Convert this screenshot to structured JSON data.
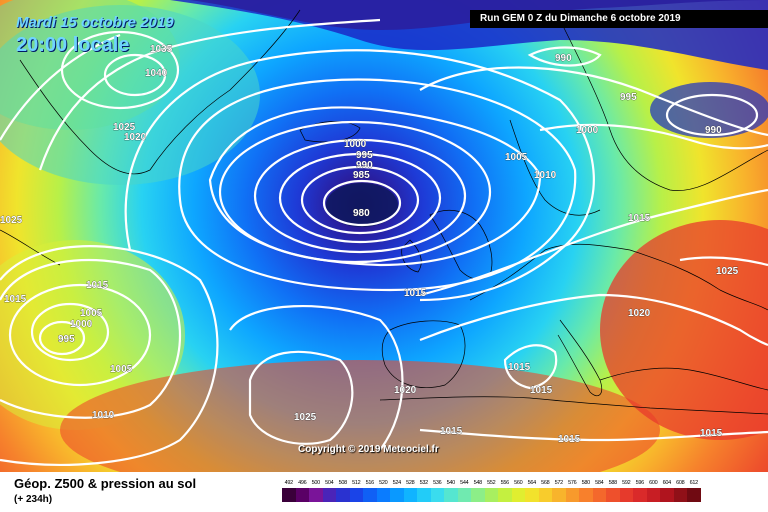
{
  "header": {
    "date_label": "Mardi 15 octobre 2019",
    "time_label": "20:00 locale",
    "run_info": "Run GEM 0 Z du Dimanche 6 octobre 2019"
  },
  "footer": {
    "product_title": "Géop. Z500 & pression au sol",
    "forecast_hour": "(+ 234h)",
    "copyright": "Copyright © 2019 Meteociel.fr"
  },
  "colorbar": {
    "levels": [
      "492",
      "496",
      "500",
      "504",
      "508",
      "512",
      "516",
      "520",
      "524",
      "528",
      "532",
      "536",
      "540",
      "544",
      "548",
      "552",
      "556",
      "560",
      "564",
      "568",
      "572",
      "576",
      "580",
      "584",
      "588",
      "592",
      "596",
      "600",
      "604",
      "608",
      "612"
    ],
    "colors": [
      "#3a003a",
      "#5a0066",
      "#7a1499",
      "#4a24b8",
      "#2a32d0",
      "#1a44e8",
      "#1060f5",
      "#0a7cff",
      "#0a99ff",
      "#10b4ff",
      "#22ccf8",
      "#3adcee",
      "#55e6d0",
      "#70eab0",
      "#8cee88",
      "#a8ef60",
      "#c4f040",
      "#e0ee30",
      "#f2e22c",
      "#f8cc2c",
      "#f8b42c",
      "#f89a2c",
      "#f8802c",
      "#f4682c",
      "#ee502c",
      "#e63a2c",
      "#da2a2a",
      "#c81e24",
      "#b0141e",
      "#901018",
      "#700a12"
    ]
  },
  "isobar_labels": [
    {
      "text": "1040",
      "tone": "dark"
    },
    {
      "text": "1025",
      "tone": "dark"
    },
    {
      "text": "1020",
      "tone": "dark"
    },
    {
      "text": "1035",
      "tone": "dark"
    },
    {
      "text": "1025",
      "tone": "dark"
    },
    {
      "text": "1015",
      "tone": "dark"
    },
    {
      "text": "1015",
      "tone": "dark"
    },
    {
      "text": "1005",
      "tone": "dark"
    },
    {
      "text": "1000",
      "tone": "dark"
    },
    {
      "text": "995",
      "tone": "dark"
    },
    {
      "text": "1005",
      "tone": "dark"
    },
    {
      "text": "1010",
      "tone": "dark"
    },
    {
      "text": "1000",
      "tone": "dark"
    },
    {
      "text": "995",
      "tone": "dark"
    },
    {
      "text": "990",
      "tone": "dark"
    },
    {
      "text": "985",
      "tone": "dark"
    },
    {
      "text": "980",
      "tone": "dark"
    },
    {
      "text": "1005",
      "tone": "dark"
    },
    {
      "text": "1010",
      "tone": "dark"
    },
    {
      "text": "990",
      "tone": "dark"
    },
    {
      "text": "995",
      "tone": "dark"
    },
    {
      "text": "1000",
      "tone": "dark"
    },
    {
      "text": "990",
      "tone": "dark"
    },
    {
      "text": "1015",
      "tone": "dark"
    },
    {
      "text": "1015",
      "tone": "dark"
    },
    {
      "text": "1025",
      "tone": "dark"
    },
    {
      "text": "1020",
      "tone": "dark"
    },
    {
      "text": "1015",
      "tone": "dark"
    },
    {
      "text": "1015",
      "tone": "dark"
    },
    {
      "text": "1020",
      "tone": "dark"
    },
    {
      "text": "1025",
      "tone": "dark"
    },
    {
      "text": "1015",
      "tone": "dark"
    },
    {
      "text": "1015",
      "tone": "dark"
    },
    {
      "text": "1015",
      "tone": "dark"
    }
  ]
}
